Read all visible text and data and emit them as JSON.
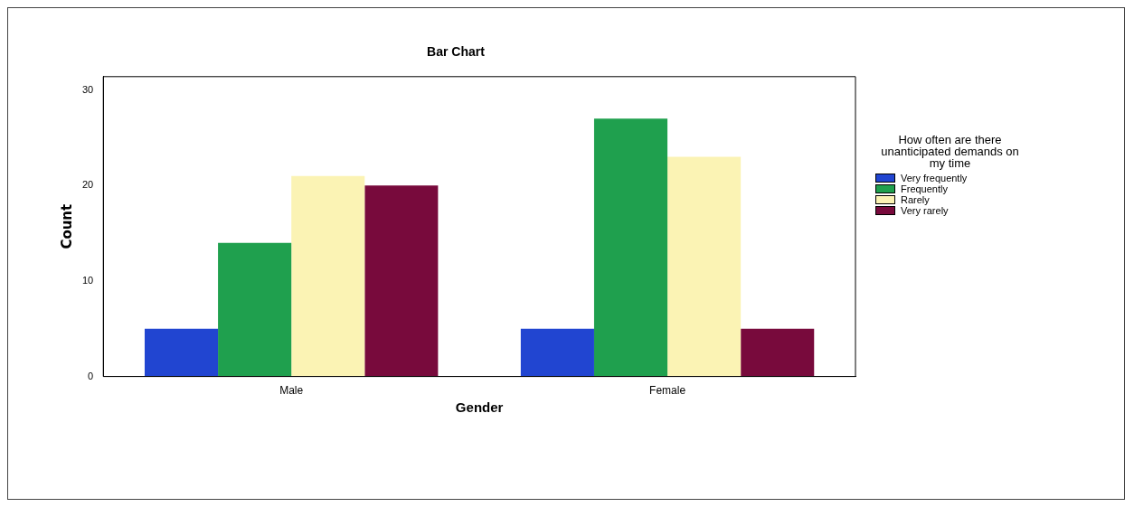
{
  "chart_data": {
    "type": "bar",
    "title": "Bar Chart",
    "xlabel": "Gender",
    "ylabel": "Count",
    "legend_title": "How often are there unanticipated demands on my time",
    "categories": [
      "Male",
      "Female"
    ],
    "series": [
      {
        "name": "Very frequently",
        "color": "#2145d1",
        "values": [
          5,
          5
        ]
      },
      {
        "name": "Frequently",
        "color": "#1fa04e",
        "values": [
          14,
          27
        ]
      },
      {
        "name": "Rarely",
        "color": "#fbf3b4",
        "values": [
          21,
          23
        ]
      },
      {
        "name": "Very rarely",
        "color": "#780a3c",
        "values": [
          20,
          5
        ]
      }
    ],
    "ylim": [
      0,
      31.4
    ],
    "yticks": [
      0,
      10,
      20,
      30
    ],
    "grid": false,
    "legend": "right"
  }
}
